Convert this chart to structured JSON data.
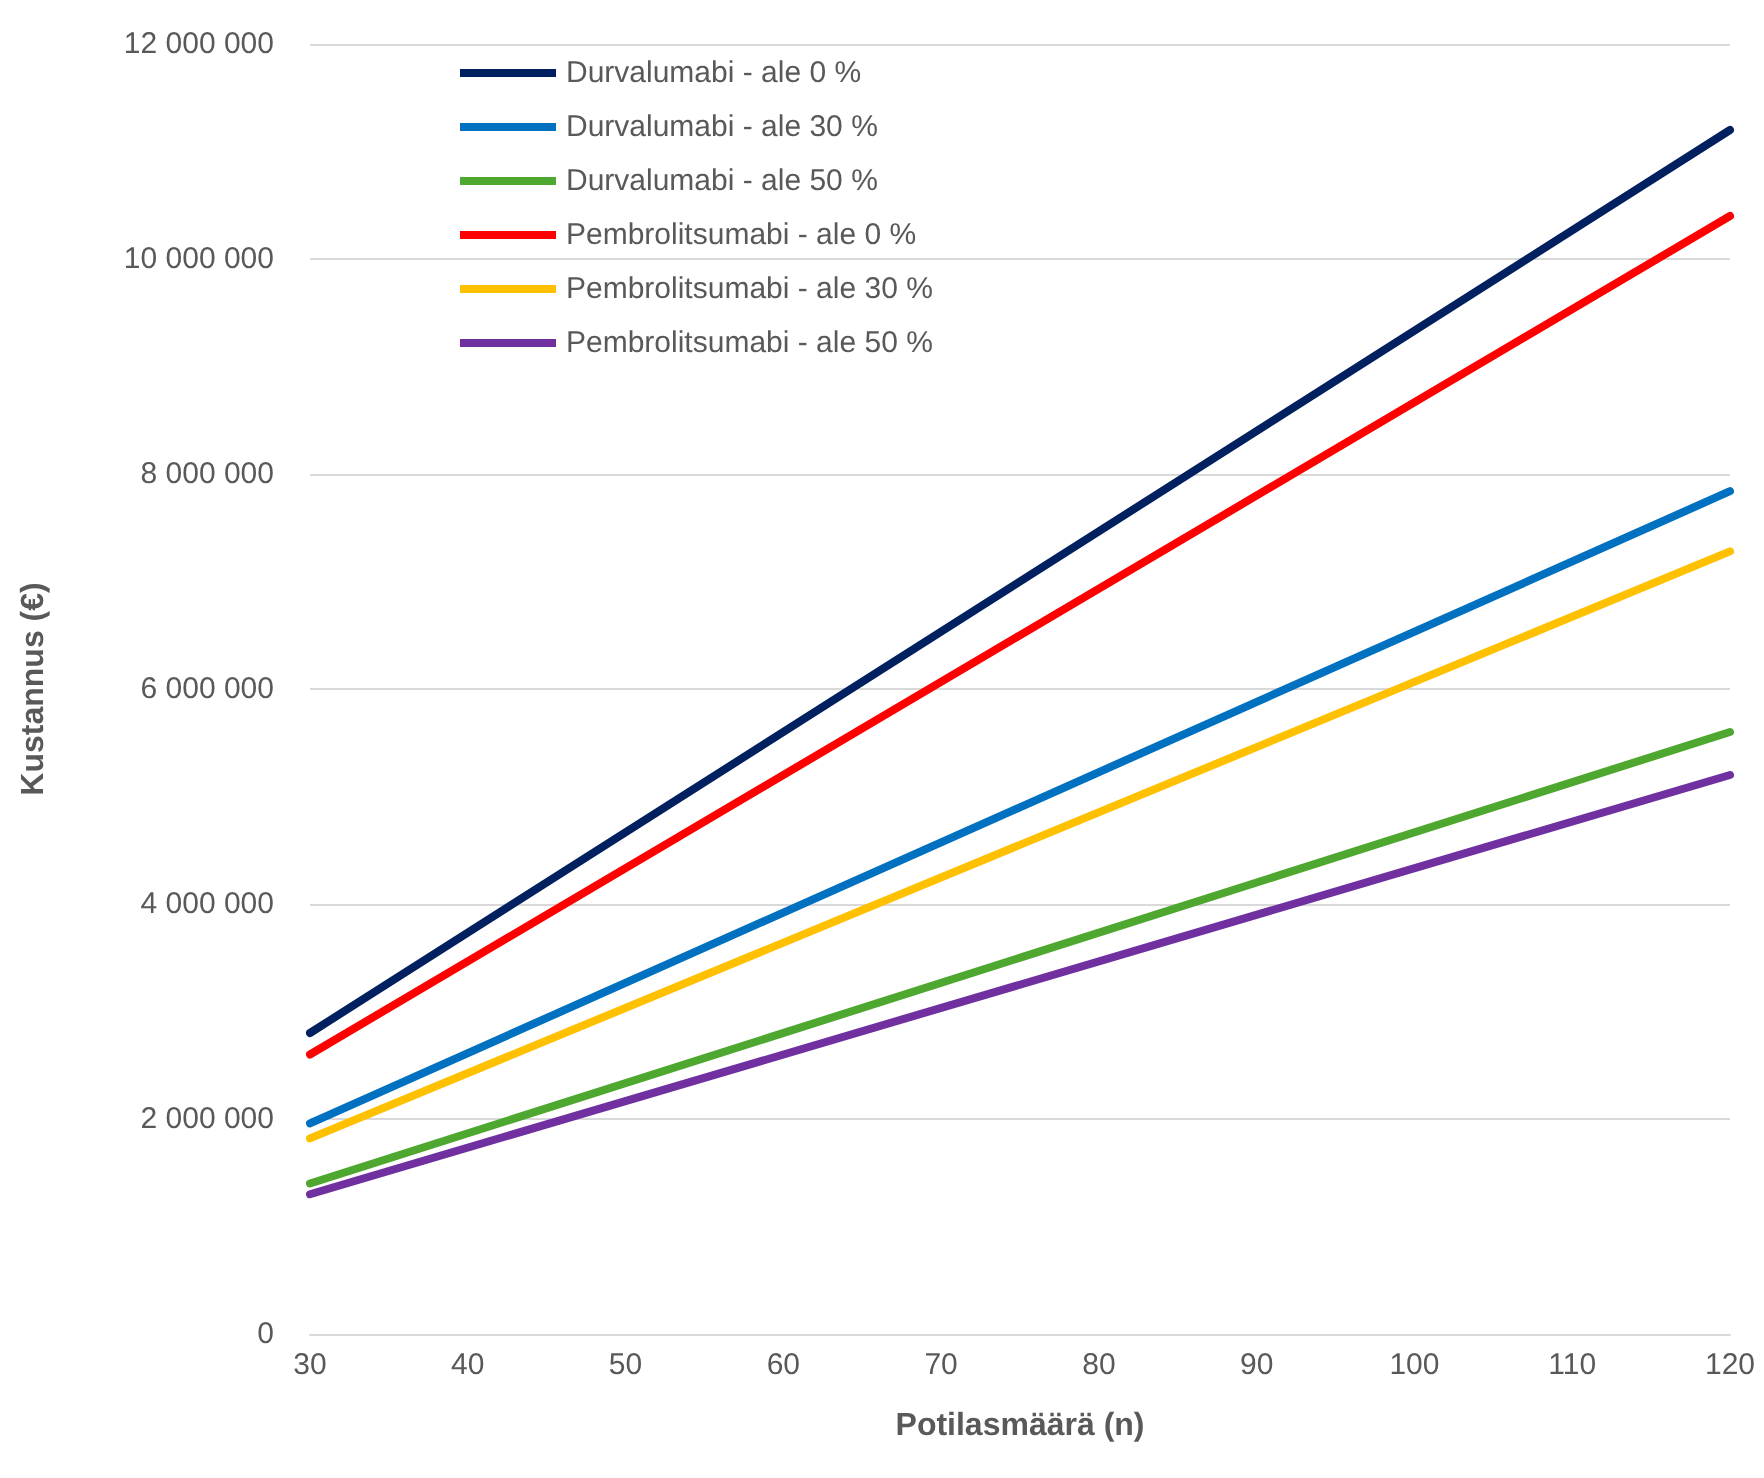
{
  "chart_data": {
    "type": "line",
    "xlabel": "Potilasmäärä (n)",
    "ylabel": "Kustannus (€)",
    "x": [
      30,
      120
    ],
    "series": [
      {
        "name": "Durvalumabi - ale 0 %",
        "color": "#002060",
        "values": [
          2800000,
          11200000
        ]
      },
      {
        "name": "Durvalumabi - ale 30 %",
        "color": "#0070c0",
        "values": [
          1960000,
          7840000
        ]
      },
      {
        "name": "Durvalumabi - ale 50 %",
        "color": "#4ea72e",
        "values": [
          1400000,
          5600000
        ]
      },
      {
        "name": "Pembrolitsumabi - ale 0 %",
        "color": "#ff0000",
        "values": [
          2600000,
          10400000
        ]
      },
      {
        "name": "Pembrolitsumabi - ale 30 %",
        "color": "#ffc000",
        "values": [
          1820000,
          7280000
        ]
      },
      {
        "name": "Pembrolitsumabi - ale 50 %",
        "color": "#7030a0",
        "values": [
          1300000,
          5200000
        ]
      }
    ],
    "xlim": [
      30,
      120
    ],
    "xticks": [
      30,
      40,
      50,
      60,
      70,
      80,
      90,
      100,
      110,
      120
    ],
    "ylim": [
      0,
      12000000
    ],
    "yticks": [
      0,
      {
        "value": 2000000,
        "label": "2 000 000"
      },
      {
        "value": 4000000,
        "label": "4 000 000"
      },
      {
        "value": 6000000,
        "label": "6 000 000"
      },
      {
        "value": 8000000,
        "label": "8 000 000"
      },
      {
        "value": 10000000,
        "label": "10 000 000"
      },
      {
        "value": 12000000,
        "label": "12 000 000"
      }
    ],
    "grid": "y",
    "legend": "top left",
    "marker": "none",
    "line_style": "solid"
  }
}
